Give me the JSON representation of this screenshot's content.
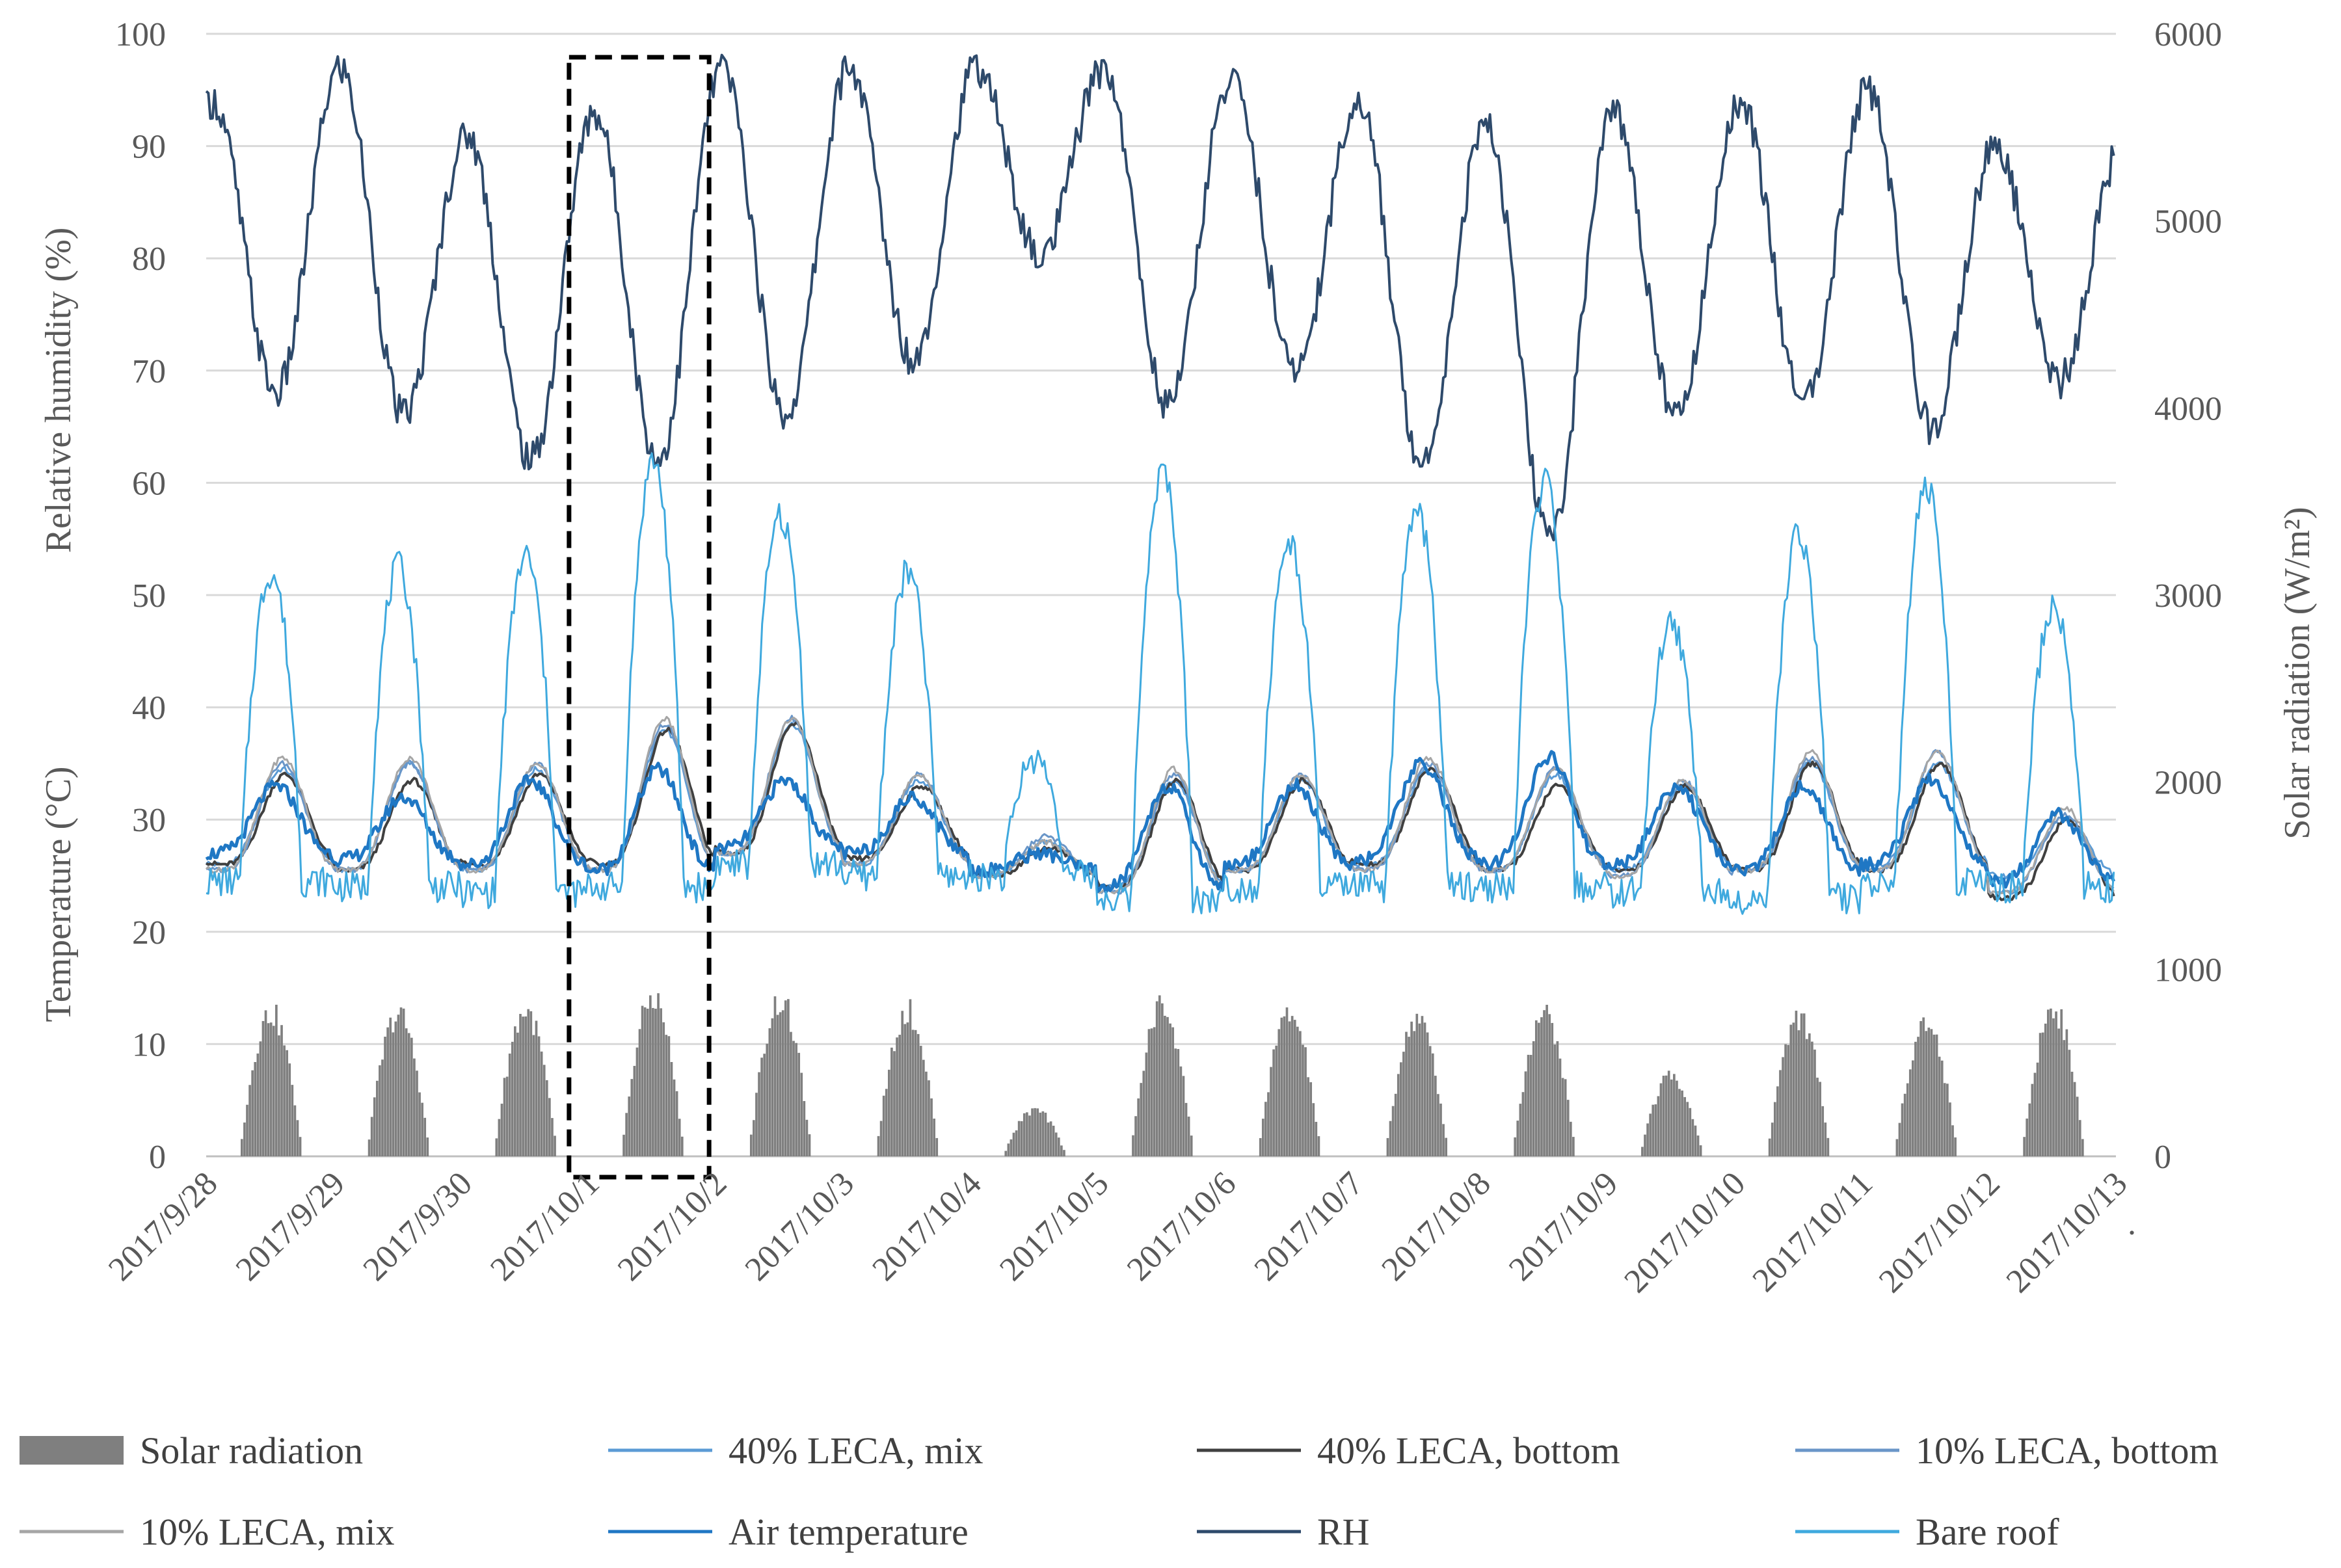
{
  "chart_data": {
    "type": "line",
    "title": "",
    "categories": [
      "2017/9/28",
      "2017/9/29",
      "2017/9/30",
      "2017/10/1",
      "2017/10/2",
      "2017/10/3",
      "2017/10/4",
      "2017/10/5",
      "2017/10/6",
      "2017/10/7",
      "2017/10/8",
      "2017/10/9",
      "2017/10/10",
      "2017/10/11",
      "2017/10/12",
      "2017/10/13"
    ],
    "trailing_tick": ".",
    "left_axis": {
      "ylim": [
        0,
        100
      ],
      "ticks": [
        "0",
        "10",
        "20",
        "30",
        "40",
        "50",
        "60",
        "70",
        "80",
        "90",
        "100"
      ],
      "title_upper": "Relative  humidity  (%)",
      "title_lower": "Temperature (°C)"
    },
    "right_axis": {
      "ylim": [
        0,
        6000
      ],
      "ticks": [
        "0",
        "1000",
        "2000",
        "3000",
        "4000",
        "5000",
        "6000"
      ],
      "title": "Solar radiation  (W/m²)"
    },
    "highlight_box": {
      "from_day": 2.85,
      "to_day": 3.95,
      "style": "dashed"
    },
    "series": [
      {
        "name": "Solar radiation",
        "kind": "bar",
        "axis": "right",
        "color": "#7f7f7f",
        "daily_peak": [
          840,
          830,
          850,
          930,
          910,
          850,
          270,
          880,
          830,
          800,
          830,
          470,
          820,
          780,
          860
        ]
      },
      {
        "name": "40% LECA, mix",
        "kind": "line",
        "axis": "left",
        "color": "#5b9bd5",
        "daily_max": [
          34.5,
          35,
          34.5,
          38,
          38.5,
          33.5,
          28,
          33.5,
          33.5,
          34.5,
          34,
          33,
          35,
          35,
          30
        ],
        "daily_min": [
          26,
          25.5,
          25.5,
          25.5,
          27,
          26,
          25,
          24,
          25.5,
          26,
          25.5,
          25.5,
          25.5,
          26,
          25
        ]
      },
      {
        "name": "40% LECA, bottom",
        "kind": "line",
        "axis": "left",
        "color": "#404040",
        "daily_max": [
          34,
          33.5,
          34,
          38,
          38.5,
          33,
          27.5,
          33.5,
          33.5,
          34.5,
          33,
          33,
          35,
          35,
          30
        ],
        "daily_min": [
          26,
          25.5,
          26,
          26,
          27,
          26.5,
          25,
          24,
          25.5,
          26,
          25.5,
          25.5,
          25.5,
          25.5,
          23
        ]
      },
      {
        "name": "10% LECA, bottom",
        "kind": "line",
        "axis": "left",
        "color": "#6a96c8",
        "daily_max": [
          35,
          35,
          35,
          38.5,
          39,
          34,
          28.5,
          34,
          34,
          35,
          34.5,
          33.5,
          35.5,
          36,
          30.5
        ],
        "daily_min": [
          25.5,
          25.5,
          25.5,
          25.5,
          27,
          26,
          25,
          23.5,
          25.5,
          25.5,
          25.5,
          25,
          25.5,
          25.5,
          23.5
        ]
      },
      {
        "name": "10% LECA, mix",
        "kind": "line",
        "axis": "left",
        "color": "#a6a6a6",
        "daily_max": [
          35.5,
          35.5,
          35,
          39,
          39,
          34,
          28,
          34.5,
          34,
          35.5,
          34.5,
          33.5,
          36,
          36,
          31
        ],
        "daily_min": [
          25.5,
          25.5,
          25.5,
          25.5,
          27,
          26,
          25,
          23.5,
          25.5,
          25.5,
          25.5,
          25,
          25.5,
          25.5,
          23.5
        ]
      },
      {
        "name": "Air temperature",
        "kind": "line",
        "axis": "left",
        "color": "#1f77c4",
        "daily_max": [
          33,
          32,
          33.5,
          34.5,
          33.5,
          32,
          27,
          33,
          33,
          35,
          35.5,
          33,
          33,
          33.5,
          30.5
        ],
        "daily_min": [
          27,
          26.5,
          26,
          25.5,
          27.5,
          27,
          25.5,
          24,
          26,
          26.5,
          26,
          26,
          25.5,
          26,
          24.5
        ]
      },
      {
        "name": "RH",
        "kind": "line",
        "axis": "left",
        "color": "#2e4a6b",
        "daily_max": [
          94,
          97,
          91,
          93,
          97,
          97,
          97,
          97,
          96,
          94,
          92,
          93,
          94,
          95,
          90
        ],
        "daily_min": [
          68,
          66,
          62,
          62,
          66,
          71,
          80,
          67,
          70,
          62,
          55,
          66,
          67,
          65,
          69
        ]
      },
      {
        "name": "Bare roof",
        "kind": "line",
        "axis": "left",
        "color": "#3fa9de",
        "daily_max": [
          52,
          52.5,
          53.5,
          62,
          57,
          52,
          35.5,
          61,
          54.5,
          57.5,
          60,
          47.5,
          55.5,
          59.5,
          49
        ],
        "daily_min": [
          24.5,
          24,
          23.5,
          24,
          26,
          25,
          25,
          23,
          24,
          24,
          24,
          23.5,
          23,
          24.5,
          24
        ]
      }
    ]
  }
}
